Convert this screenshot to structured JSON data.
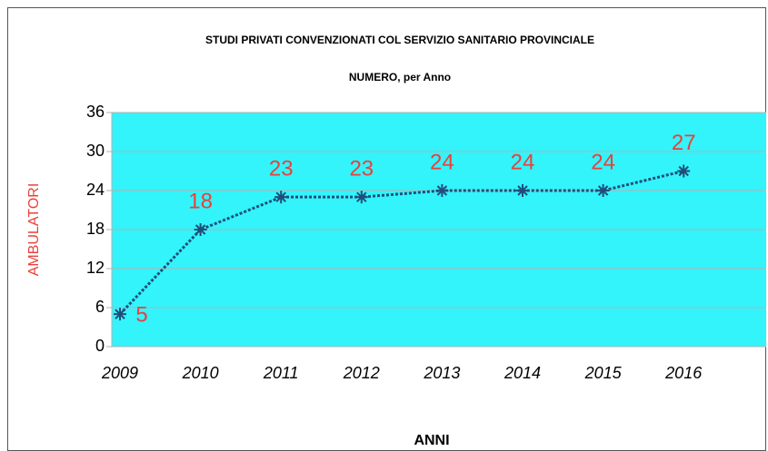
{
  "chart_data": {
    "type": "line",
    "title": "STUDI PRIVATI CONVENZIONATI COL SERVIZIO SANITARIO PROVINCIALE",
    "subtitle": "NUMERO, per Anno",
    "x_label": "ANNI",
    "y_label": "AMBULATORI",
    "categories": [
      "2009",
      "2010",
      "2011",
      "2012",
      "2013",
      "2014",
      "2015",
      "2016"
    ],
    "series": [
      {
        "name": "AMBULATORI",
        "color": "#1f4e79",
        "values": [
          5,
          18,
          23,
          23,
          24,
          24,
          24,
          27
        ]
      }
    ],
    "ylim": [
      0,
      36
    ],
    "yticks": [
      0,
      6,
      12,
      18,
      24,
      30,
      36
    ],
    "grid": true,
    "plot_background": "#33f3fb",
    "label_color": "#e8423c"
  }
}
